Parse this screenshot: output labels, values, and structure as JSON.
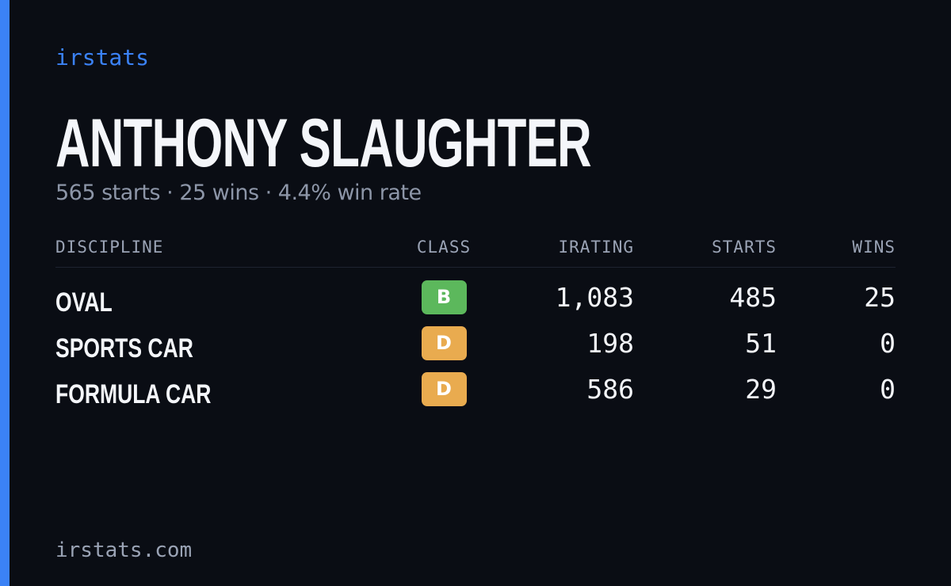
{
  "brand": "irstats",
  "title": "ANTHONY SLAUGHTER",
  "subtitle": "565 starts · 25 wins · 4.4% win rate",
  "table": {
    "headers": [
      "DISCIPLINE",
      "CLASS",
      "IRATING",
      "STARTS",
      "WINS"
    ],
    "rows": [
      {
        "discipline": "OVAL",
        "class": "B",
        "class_color": "#5cb85c",
        "irating": "1,083",
        "starts": "485",
        "wins": "25"
      },
      {
        "discipline": "SPORTS CAR",
        "class": "D",
        "class_color": "#e9ab4f",
        "irating": "198",
        "starts": "51",
        "wins": "0"
      },
      {
        "discipline": "FORMULA CAR",
        "class": "D",
        "class_color": "#e9ab4f",
        "irating": "586",
        "starts": "29",
        "wins": "0"
      }
    ]
  },
  "footer": "irstats.com"
}
